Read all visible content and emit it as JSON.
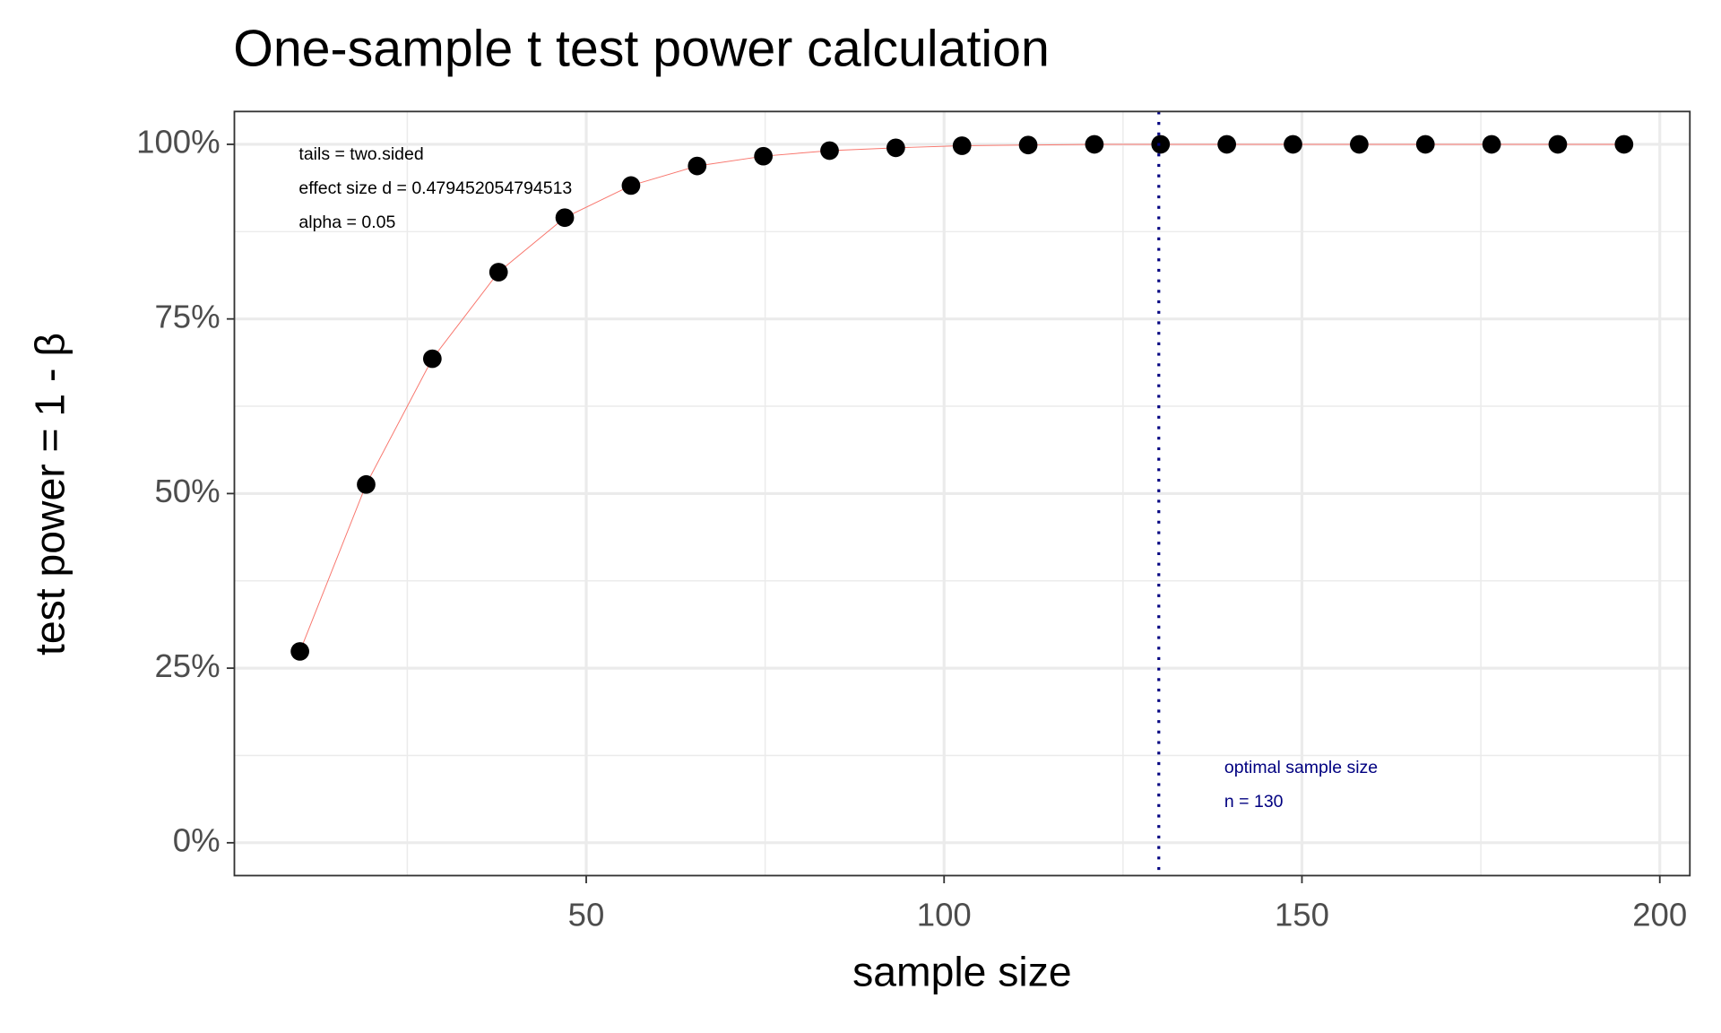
{
  "chart_data": {
    "type": "line",
    "title": "One-sample t test power calculation",
    "x_label": "sample size",
    "y_label": "test power = 1 - β",
    "x": [
      10,
      19.25,
      28.5,
      37.75,
      47,
      56.25,
      65.5,
      74.75,
      84,
      93.25,
      102.5,
      111.75,
      121,
      130.25,
      139.5,
      148.75,
      158,
      167.25,
      176.5,
      185.75,
      195
    ],
    "values": [
      27.4,
      51.3,
      69.3,
      81.7,
      89.5,
      94.1,
      96.9,
      98.3,
      99.1,
      99.5,
      99.8,
      99.9,
      100,
      100,
      100,
      100,
      100,
      100,
      100,
      100,
      100
    ],
    "line_color": "#f8766d",
    "point_color": "#000000",
    "xlim": [
      0.84,
      204.2
    ],
    "ylim": [
      -4.7,
      104.7
    ],
    "xticks": [
      50,
      100,
      150,
      200
    ],
    "yticks": [
      {
        "value": 0,
        "label": "0%"
      },
      {
        "value": 25,
        "label": "25%"
      },
      {
        "value": 50,
        "label": "50%"
      },
      {
        "value": 75,
        "label": "75%"
      },
      {
        "value": 100,
        "label": "100%"
      }
    ],
    "xminor": [
      25,
      75,
      125,
      175
    ],
    "yminor": [
      12.5,
      37.5,
      62.5,
      87.5
    ],
    "grid": true,
    "vline": 130,
    "vline_color": "#000080",
    "annotations": [
      "tails = two.sided",
      "effect size d = 0.479452054794513",
      "alpha = 0.05"
    ],
    "vline_annotations": [
      "optimal sample size",
      "n = 130"
    ]
  }
}
